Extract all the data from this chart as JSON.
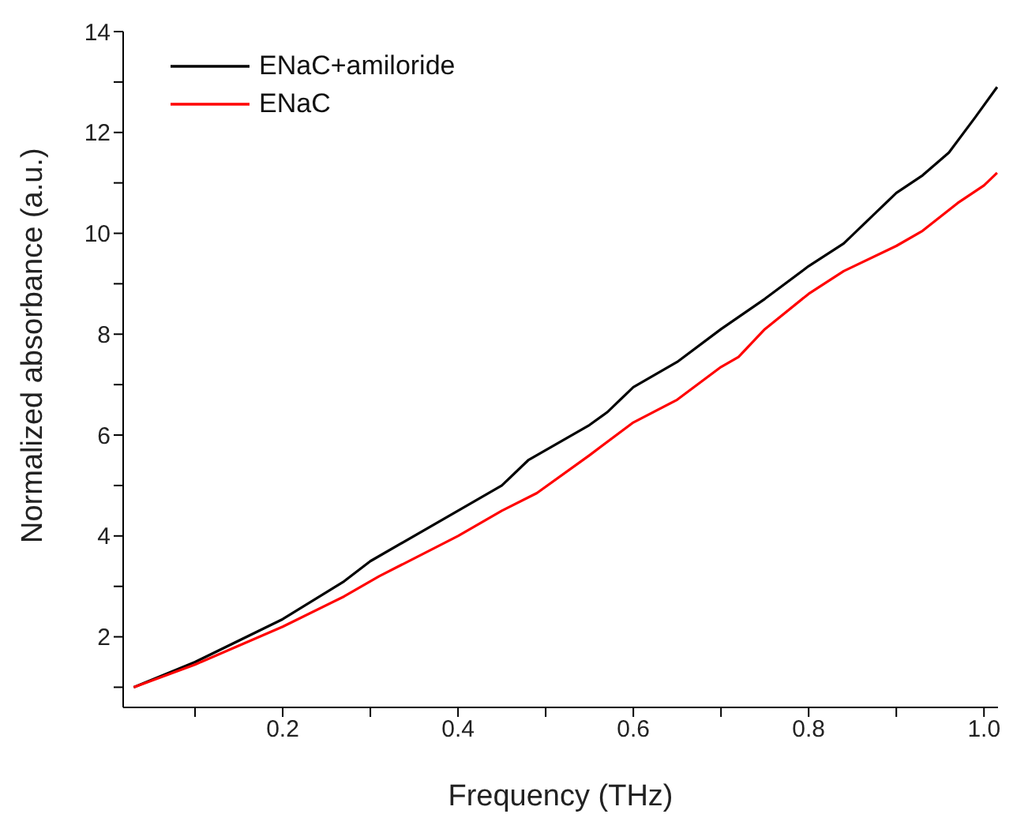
{
  "chart_data": {
    "type": "line",
    "xlabel": "Frequency (THz)",
    "ylabel": "Normalized absorbance (a.u.)",
    "xlim": [
      0.018,
      1.016
    ],
    "ylim": [
      0.6,
      14
    ],
    "xticks": [
      {
        "value": 0.1,
        "label": null
      },
      0.2,
      {
        "value": 0.3,
        "label": null
      },
      0.4,
      {
        "value": 0.5,
        "label": null
      },
      0.6,
      {
        "value": 0.7,
        "label": null
      },
      0.8,
      {
        "value": 0.9,
        "label": null
      },
      {
        "value": 1,
        "label": "1.0"
      }
    ],
    "yticks": [
      {
        "value": 1,
        "label": null
      },
      2,
      {
        "value": 3,
        "label": null
      },
      4,
      {
        "value": 5,
        "label": null
      },
      6,
      {
        "value": 7,
        "label": null
      },
      8,
      {
        "value": 9,
        "label": null
      },
      10,
      {
        "value": 11,
        "label": null
      },
      12,
      {
        "value": 13,
        "label": null
      },
      14
    ],
    "grid": false,
    "legend": "top left",
    "marker": "none",
    "line_style": "solid",
    "series": [
      {
        "name": "ENaC+amiloride",
        "color": "#000000",
        "x": [
          0.03,
          0.1,
          0.2,
          0.27,
          0.3,
          0.4,
          0.45,
          0.48,
          0.55,
          0.57,
          0.6,
          0.65,
          0.7,
          0.75,
          0.8,
          0.84,
          0.87,
          0.9,
          0.93,
          0.96,
          0.99,
          1.015
        ],
        "values": [
          1.0,
          1.5,
          2.35,
          3.1,
          3.5,
          4.5,
          5.0,
          5.5,
          6.2,
          6.45,
          6.95,
          7.45,
          8.1,
          8.7,
          9.35,
          9.8,
          10.3,
          10.8,
          11.15,
          11.6,
          12.3,
          12.9
        ]
      },
      {
        "name": "ENaC",
        "color": "#ff0000",
        "x": [
          0.03,
          0.1,
          0.2,
          0.27,
          0.31,
          0.4,
          0.45,
          0.49,
          0.55,
          0.6,
          0.65,
          0.7,
          0.72,
          0.75,
          0.8,
          0.84,
          0.9,
          0.93,
          0.97,
          1.0,
          1.015
        ],
        "values": [
          1.0,
          1.45,
          2.2,
          2.8,
          3.2,
          4.0,
          4.5,
          4.85,
          5.6,
          6.25,
          6.7,
          7.35,
          7.55,
          8.1,
          8.8,
          9.25,
          9.75,
          10.05,
          10.6,
          10.95,
          11.2
        ]
      }
    ]
  }
}
